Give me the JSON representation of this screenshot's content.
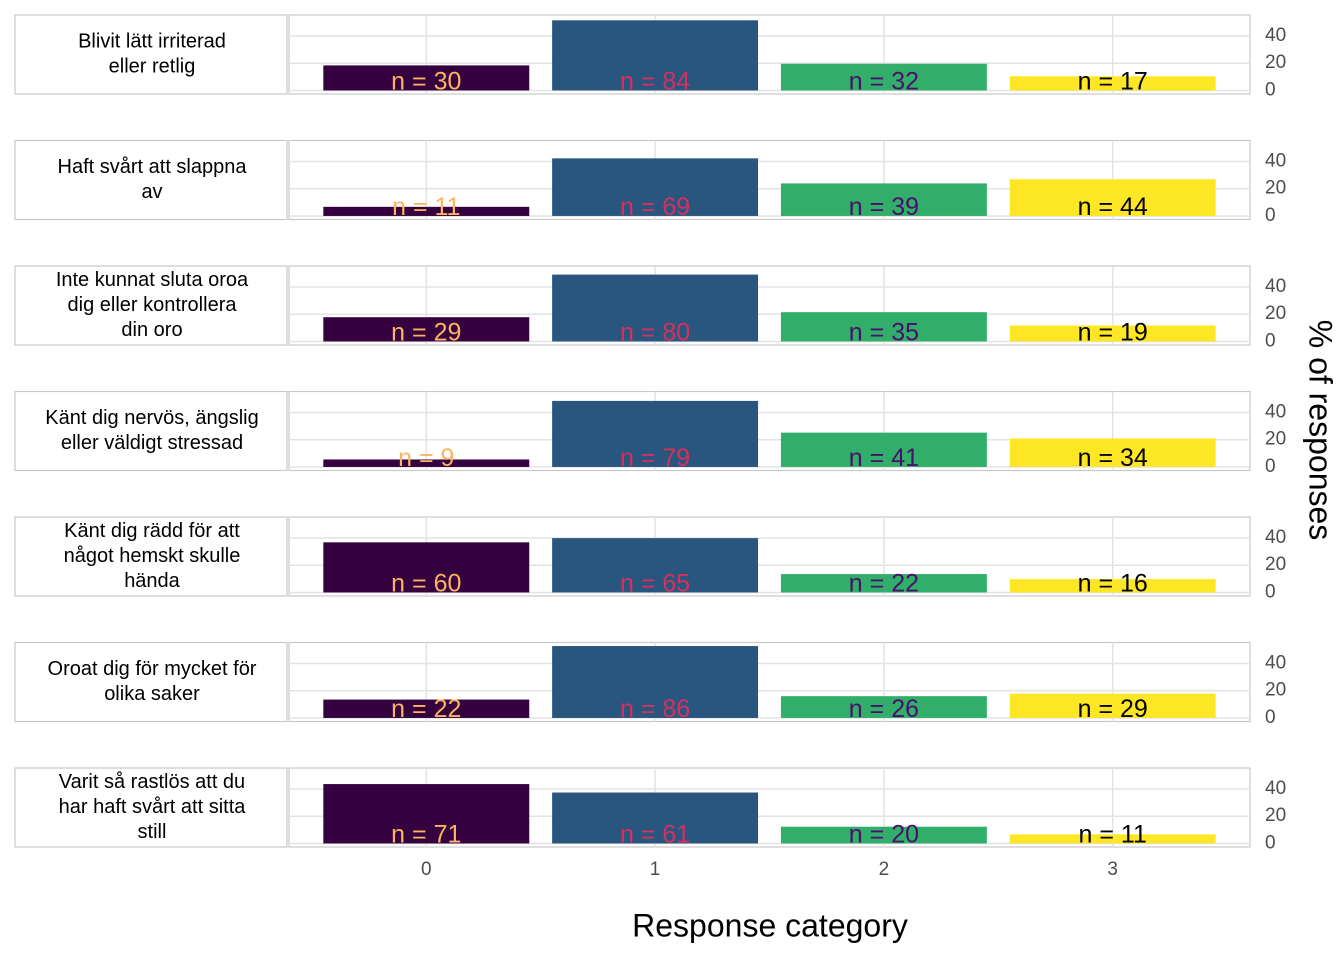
{
  "chart_data": {
    "type": "bar",
    "categories": [
      "0",
      "1",
      "2",
      "3"
    ],
    "colors": [
      "#35013f",
      "#29567f",
      "#31ae6a",
      "#fde725"
    ],
    "label_colors": [
      "#fdb462",
      "#d7305f",
      "#4a0f6b",
      "#000000"
    ],
    "xlabel": "Response category",
    "ylabel": "% of responses",
    "ylim": [
      -2.6,
      55.4
    ],
    "yticks": [
      0,
      20,
      40
    ],
    "grid": true,
    "facets": [
      {
        "strip": [
          "Blivit lätt irriterad",
          "eller retlig"
        ],
        "values": [
          18.4,
          51.5,
          19.6,
          10.4
        ],
        "labels": [
          "n = 30",
          "n = 84",
          "n = 32",
          "n = 17"
        ]
      },
      {
        "strip": [
          "Haft svårt att slappna",
          "av"
        ],
        "values": [
          6.7,
          42.3,
          23.9,
          27.0
        ],
        "labels": [
          "n = 11",
          "n = 69",
          "n = 39",
          "n = 44"
        ]
      },
      {
        "strip": [
          "Inte kunnat sluta oroa",
          "dig eller kontrollera",
          "din oro"
        ],
        "values": [
          17.8,
          49.1,
          21.5,
          11.7
        ],
        "labels": [
          "n = 29",
          "n = 80",
          "n = 35",
          "n = 19"
        ]
      },
      {
        "strip": [
          "Känt dig nervös, ängslig",
          "eller väldigt stressad"
        ],
        "values": [
          5.5,
          48.5,
          25.2,
          20.9
        ],
        "labels": [
          "n = 9",
          "n = 79",
          "n = 41",
          "n = 34"
        ]
      },
      {
        "strip": [
          "Känt dig rädd för att",
          "något hemskt skulle",
          "hända"
        ],
        "values": [
          36.8,
          39.9,
          13.5,
          9.8
        ],
        "labels": [
          "n = 60",
          "n = 65",
          "n = 22",
          "n = 16"
        ]
      },
      {
        "strip": [
          "Oroat dig för mycket för",
          "olika saker"
        ],
        "values": [
          13.5,
          52.8,
          16.0,
          17.8
        ],
        "labels": [
          "n = 22",
          "n = 86",
          "n = 26",
          "n = 29"
        ]
      },
      {
        "strip": [
          "Varit så rastlös att du",
          "har haft svårt att sitta",
          "still"
        ],
        "values": [
          43.6,
          37.4,
          12.3,
          6.7
        ],
        "labels": [
          "n = 71",
          "n = 61",
          "n = 20",
          "n = 11"
        ]
      }
    ]
  }
}
